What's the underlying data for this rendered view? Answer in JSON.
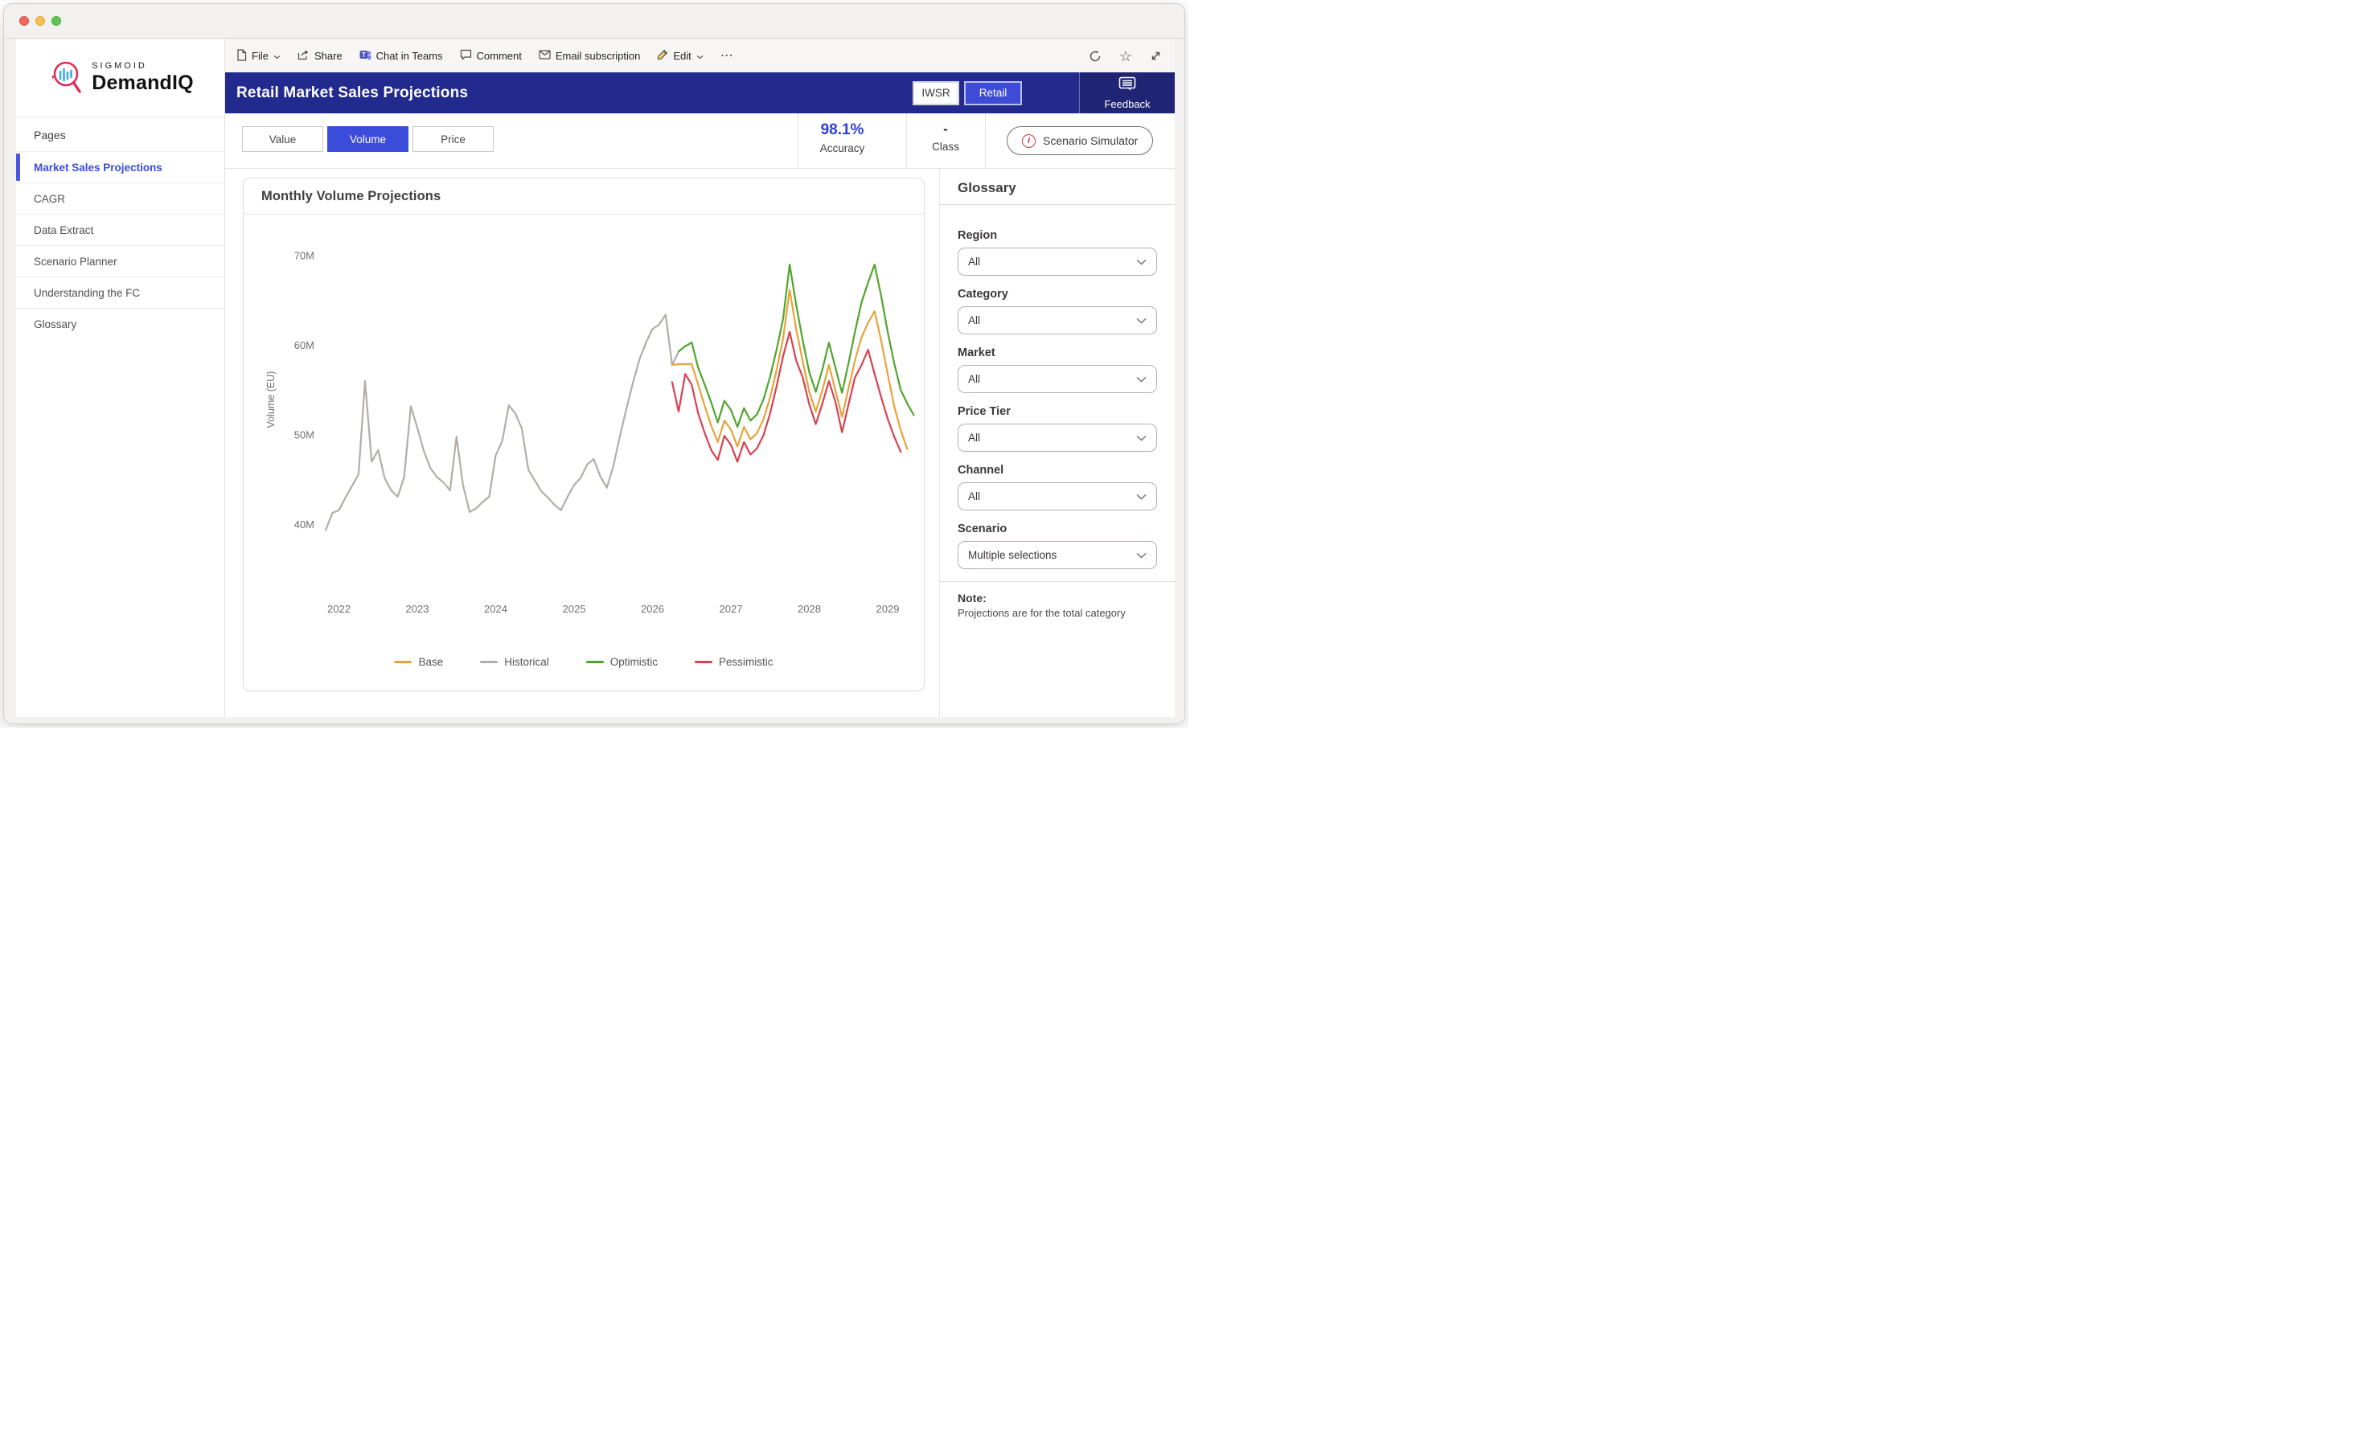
{
  "colors": {
    "accent": "#3B4CDB",
    "header_navy": "#232A8E",
    "feedback_navy": "#1F2574",
    "info_red": "#C9343F",
    "logo_ring": "#E02B57",
    "logo_bars": "#3FA9F5",
    "historical": "#B2ADA7",
    "base": "#E9A23B",
    "optimistic": "#4FA52B",
    "pessimistic": "#D8414F"
  },
  "icons": {
    "more": "⋯",
    "star": "☆"
  },
  "brand": {
    "name_top": "SIGMOID",
    "name_bottom": "DemandIQ"
  },
  "sidebar": {
    "section_label": "Pages",
    "items": [
      {
        "label": "Market Sales Projections",
        "active": true
      },
      {
        "label": "CAGR",
        "active": false
      },
      {
        "label": "Data Extract",
        "active": false
      },
      {
        "label": "Scenario Planner",
        "active": false
      },
      {
        "label": "Understanding the FC",
        "active": false
      },
      {
        "label": "Glossary",
        "active": false
      }
    ]
  },
  "toolbar": {
    "file": "File",
    "share": "Share",
    "chat": "Chat in Teams",
    "comment": "Comment",
    "email": "Email subscription",
    "edit": "Edit"
  },
  "header": {
    "title": "Retail Market Sales Projections",
    "iwsr_label": "IWSR",
    "retail_label": "Retail",
    "feedback_label": "Feedback"
  },
  "subheader": {
    "tabs": [
      {
        "label": "Value",
        "active": false
      },
      {
        "label": "Volume",
        "active": true
      },
      {
        "label": "Price",
        "active": false
      }
    ],
    "accuracy_value": "98.1%",
    "accuracy_label": "Accuracy",
    "class_value": "-",
    "class_label": "Class",
    "scenario_button": "Scenario Simulator"
  },
  "panel": {
    "title": "Glossary",
    "filters": [
      {
        "label": "Region",
        "value": "All"
      },
      {
        "label": "Category",
        "value": "All"
      },
      {
        "label": "Market",
        "value": "All"
      },
      {
        "label": "Price Tier",
        "value": "All"
      },
      {
        "label": "Channel",
        "value": "All"
      },
      {
        "label": "Scenario",
        "value": "Multiple selections"
      }
    ],
    "note_label": "Note:",
    "note_text": "Projections are for the total category"
  },
  "chart_data": {
    "type": "line",
    "title": "Monthly Volume Projections",
    "xlabel": "",
    "ylabel": "Volume (EU)",
    "grid": false,
    "legend_position": "bottom",
    "x_ticks": [
      2022,
      2023,
      2024,
      2025,
      2026,
      2027,
      2028,
      2029
    ],
    "y_ticks": [
      40,
      50,
      60,
      70
    ],
    "y_tick_labels": [
      "40M",
      "50M",
      "60M",
      "70M"
    ],
    "x_domain": [
      2021.7,
      2029.8
    ],
    "y_domain": [
      37.5,
      72.5
    ],
    "units": "millions (EU)",
    "legend": [
      "Base",
      "Historical",
      "Optimistic",
      "Pessimistic"
    ],
    "series": [
      {
        "name": "Historical",
        "color": "#B2ADA7",
        "points": [
          [
            2021.833,
            39.4
          ],
          [
            2021.917,
            41.3
          ],
          [
            2022.0,
            41.6
          ],
          [
            2022.083,
            43.0
          ],
          [
            2022.167,
            44.3
          ],
          [
            2022.25,
            45.6
          ],
          [
            2022.333,
            56.0
          ],
          [
            2022.417,
            47.0
          ],
          [
            2022.5,
            48.3
          ],
          [
            2022.583,
            45.2
          ],
          [
            2022.667,
            43.8
          ],
          [
            2022.75,
            43.1
          ],
          [
            2022.833,
            45.3
          ],
          [
            2022.917,
            53.2
          ],
          [
            2023.0,
            50.8
          ],
          [
            2023.083,
            48.2
          ],
          [
            2023.167,
            46.3
          ],
          [
            2023.25,
            45.3
          ],
          [
            2023.333,
            44.7
          ],
          [
            2023.417,
            43.8
          ],
          [
            2023.5,
            49.8
          ],
          [
            2023.583,
            44.4
          ],
          [
            2023.667,
            41.4
          ],
          [
            2023.75,
            41.8
          ],
          [
            2023.833,
            42.5
          ],
          [
            2023.917,
            43.1
          ],
          [
            2024.0,
            47.7
          ],
          [
            2024.083,
            49.3
          ],
          [
            2024.167,
            53.3
          ],
          [
            2024.25,
            52.4
          ],
          [
            2024.333,
            50.7
          ],
          [
            2024.417,
            46.1
          ],
          [
            2024.5,
            44.9
          ],
          [
            2024.583,
            43.7
          ],
          [
            2024.667,
            43.0
          ],
          [
            2024.75,
            42.2
          ],
          [
            2024.833,
            41.6
          ],
          [
            2024.917,
            43.1
          ],
          [
            2025.0,
            44.4
          ],
          [
            2025.083,
            45.2
          ],
          [
            2025.167,
            46.7
          ],
          [
            2025.25,
            47.3
          ],
          [
            2025.333,
            45.4
          ],
          [
            2025.417,
            44.1
          ],
          [
            2025.5,
            46.5
          ],
          [
            2025.583,
            49.8
          ],
          [
            2025.667,
            52.9
          ],
          [
            2025.75,
            55.8
          ],
          [
            2025.833,
            58.4
          ],
          [
            2025.917,
            60.3
          ],
          [
            2026.0,
            61.8
          ],
          [
            2026.083,
            62.3
          ],
          [
            2026.167,
            63.4
          ],
          [
            2026.25,
            57.8
          ],
          [
            2026.333,
            59.3
          ]
        ]
      },
      {
        "name": "Base",
        "color": "#E9A23B",
        "points": [
          [
            2026.25,
            57.8
          ],
          [
            2026.333,
            57.9
          ],
          [
            2026.417,
            57.9
          ],
          [
            2026.5,
            57.9
          ],
          [
            2026.583,
            55.6
          ],
          [
            2026.667,
            53.2
          ],
          [
            2026.75,
            51.0
          ],
          [
            2026.833,
            49.2
          ],
          [
            2026.917,
            51.6
          ],
          [
            2027.0,
            50.6
          ],
          [
            2027.083,
            48.7
          ],
          [
            2027.167,
            50.9
          ],
          [
            2027.25,
            49.5
          ],
          [
            2027.333,
            50.2
          ],
          [
            2027.417,
            51.8
          ],
          [
            2027.5,
            54.2
          ],
          [
            2027.583,
            57.2
          ],
          [
            2027.667,
            60.8
          ],
          [
            2027.75,
            66.2
          ],
          [
            2027.833,
            61.8
          ],
          [
            2027.917,
            58.2
          ],
          [
            2028.0,
            54.8
          ],
          [
            2028.083,
            52.6
          ],
          [
            2028.167,
            55.0
          ],
          [
            2028.25,
            57.8
          ],
          [
            2028.333,
            55.0
          ],
          [
            2028.417,
            52.0
          ],
          [
            2028.5,
            55.2
          ],
          [
            2028.583,
            58.3
          ],
          [
            2028.667,
            60.9
          ],
          [
            2028.75,
            62.5
          ],
          [
            2028.833,
            63.8
          ],
          [
            2028.917,
            60.5
          ],
          [
            2029.0,
            56.8
          ],
          [
            2029.083,
            53.2
          ],
          [
            2029.167,
            50.5
          ],
          [
            2029.25,
            48.4
          ]
        ]
      },
      {
        "name": "Optimistic",
        "color": "#4FA52B",
        "points": [
          [
            2026.333,
            59.3
          ],
          [
            2026.417,
            59.9
          ],
          [
            2026.5,
            60.3
          ],
          [
            2026.583,
            57.5
          ],
          [
            2026.667,
            55.6
          ],
          [
            2026.75,
            53.6
          ],
          [
            2026.833,
            51.4
          ],
          [
            2026.917,
            53.8
          ],
          [
            2027.0,
            52.8
          ],
          [
            2027.083,
            50.9
          ],
          [
            2027.167,
            53.0
          ],
          [
            2027.25,
            51.6
          ],
          [
            2027.333,
            52.3
          ],
          [
            2027.417,
            54.0
          ],
          [
            2027.5,
            56.5
          ],
          [
            2027.583,
            59.5
          ],
          [
            2027.667,
            63.0
          ],
          [
            2027.75,
            69.0
          ],
          [
            2027.833,
            64.5
          ],
          [
            2027.917,
            60.5
          ],
          [
            2028.0,
            57.0
          ],
          [
            2028.083,
            54.8
          ],
          [
            2028.167,
            57.3
          ],
          [
            2028.25,
            60.3
          ],
          [
            2028.333,
            57.5
          ],
          [
            2028.417,
            54.7
          ],
          [
            2028.5,
            58.0
          ],
          [
            2028.583,
            61.5
          ],
          [
            2028.667,
            64.8
          ],
          [
            2028.75,
            67.0
          ],
          [
            2028.833,
            69.0
          ],
          [
            2028.917,
            65.5
          ],
          [
            2029.0,
            61.5
          ],
          [
            2029.083,
            58.0
          ],
          [
            2029.167,
            55.0
          ],
          [
            2029.25,
            53.5
          ],
          [
            2029.333,
            52.2
          ]
        ]
      },
      {
        "name": "Pessimistic",
        "color": "#D8414F",
        "points": [
          [
            2026.25,
            55.9
          ],
          [
            2026.333,
            52.6
          ],
          [
            2026.417,
            56.8
          ],
          [
            2026.5,
            55.6
          ],
          [
            2026.583,
            52.4
          ],
          [
            2026.667,
            50.2
          ],
          [
            2026.75,
            48.3
          ],
          [
            2026.833,
            47.2
          ],
          [
            2026.917,
            49.9
          ],
          [
            2027.0,
            48.9
          ],
          [
            2027.083,
            47.0
          ],
          [
            2027.167,
            49.2
          ],
          [
            2027.25,
            47.8
          ],
          [
            2027.333,
            48.5
          ],
          [
            2027.417,
            50.0
          ],
          [
            2027.5,
            52.4
          ],
          [
            2027.583,
            55.4
          ],
          [
            2027.667,
            58.8
          ],
          [
            2027.75,
            61.5
          ],
          [
            2027.833,
            58.3
          ],
          [
            2027.917,
            56.4
          ],
          [
            2028.0,
            53.4
          ],
          [
            2028.083,
            51.2
          ],
          [
            2028.167,
            53.5
          ],
          [
            2028.25,
            56.0
          ],
          [
            2028.333,
            53.7
          ],
          [
            2028.417,
            50.3
          ],
          [
            2028.5,
            53.4
          ],
          [
            2028.583,
            56.4
          ],
          [
            2028.667,
            57.8
          ],
          [
            2028.75,
            59.5
          ],
          [
            2028.833,
            56.8
          ],
          [
            2028.917,
            54.2
          ],
          [
            2029.0,
            51.8
          ],
          [
            2029.083,
            49.8
          ],
          [
            2029.167,
            48.1
          ]
        ]
      }
    ]
  }
}
